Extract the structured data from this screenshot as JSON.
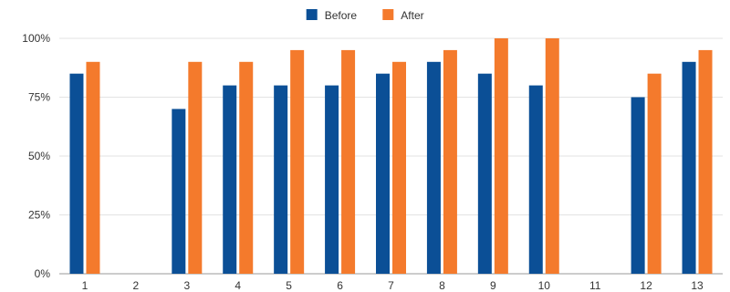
{
  "chart_data": {
    "type": "bar",
    "categories": [
      "1",
      "2",
      "3",
      "4",
      "5",
      "6",
      "7",
      "8",
      "9",
      "10",
      "11",
      "12",
      "13"
    ],
    "series": [
      {
        "name": "Before",
        "color": "#0b4f96",
        "values": [
          85,
          null,
          70,
          80,
          80,
          80,
          85,
          90,
          85,
          80,
          null,
          75,
          90
        ]
      },
      {
        "name": "After",
        "color": "#f47a2c",
        "values": [
          90,
          null,
          90,
          90,
          95,
          95,
          90,
          95,
          100,
          100,
          null,
          85,
          95
        ]
      }
    ],
    "ylim": [
      0,
      100
    ],
    "yticks": [
      "0%",
      "25%",
      "50%",
      "75%",
      "100%"
    ],
    "ytick_values": [
      0,
      25,
      50,
      75,
      100
    ],
    "grid": true,
    "legend_position": "top-center"
  }
}
